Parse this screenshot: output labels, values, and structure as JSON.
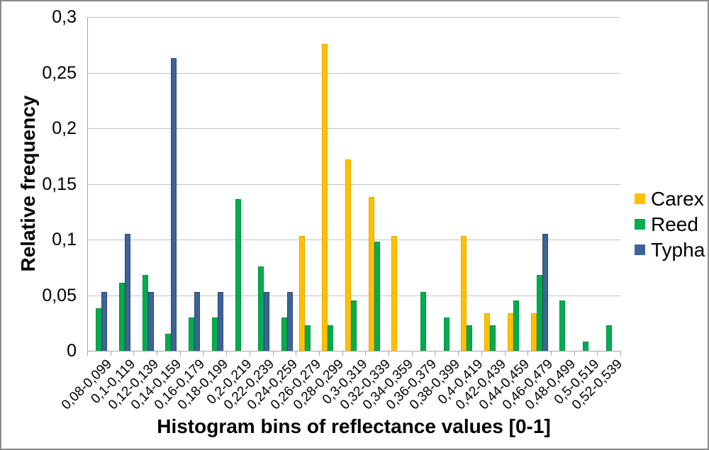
{
  "frame": {
    "border_color": "#8a8a8a",
    "background": "#ffffff"
  },
  "chart_data": {
    "type": "bar",
    "title": "",
    "xlabel": "Histogram bins of reflectance values [0-1]",
    "ylabel": "Relative frequency",
    "ylim": [
      0,
      0.3
    ],
    "grid": "horizontal",
    "legend_position": "right",
    "decimal_separator": ",",
    "y_ticks": [
      {
        "value": 0.3,
        "label": "0,3"
      },
      {
        "value": 0.25,
        "label": "0,25"
      },
      {
        "value": 0.2,
        "label": "0,2"
      },
      {
        "value": 0.15,
        "label": "0,15"
      },
      {
        "value": 0.1,
        "label": "0,1"
      },
      {
        "value": 0.05,
        "label": "0,05"
      },
      {
        "value": 0,
        "label": "0"
      }
    ],
    "categories": [
      "0,08-0,099",
      "0,1-0,119",
      "0,12-0,139",
      "0,14-0,159",
      "0,16-0,179",
      "0,18-0,199",
      "0,2-0,219",
      "0,22-0,239",
      "0,24-0,259",
      "0,26-0,279",
      "0,28-0,299",
      "0,3-0,319",
      "0,32-0,339",
      "0,34-0,359",
      "0,36-0,379",
      "0,38-0,399",
      "0,4-0,419",
      "0,42-0,439",
      "0,44-0,459",
      "0,46-0,479",
      "0,48-0,499",
      "0,5-0,519",
      "0,52-0,539"
    ],
    "series": [
      {
        "name": "Carex",
        "color": "#FFC000",
        "border_color": "#E2A900",
        "values": [
          0,
          0,
          0,
          0,
          0,
          0,
          0,
          0,
          0,
          0.103,
          0.276,
          0.172,
          0.138,
          0.103,
          0,
          0,
          0.103,
          0.034,
          0.034,
          0.034,
          0,
          0,
          0
        ]
      },
      {
        "name": "Reed",
        "color": "#00AD4F",
        "border_color": "#009140",
        "values": [
          0.038,
          0.061,
          0.068,
          0.015,
          0.03,
          0.03,
          0.136,
          0.076,
          0.03,
          0.023,
          0.023,
          0.045,
          0.098,
          0,
          0.053,
          0.03,
          0.023,
          0.023,
          0.045,
          0.068,
          0.045,
          0.008,
          0.023
        ]
      },
      {
        "name": "Typha",
        "color": "#3C6498",
        "border_color": "#2B4A72",
        "values": [
          0.053,
          0.105,
          0.053,
          0.263,
          0.053,
          0.053,
          0,
          0.053,
          0.053,
          0,
          0,
          0,
          0,
          0,
          0,
          0,
          0,
          0,
          0,
          0.105,
          0,
          0,
          0
        ]
      }
    ]
  }
}
